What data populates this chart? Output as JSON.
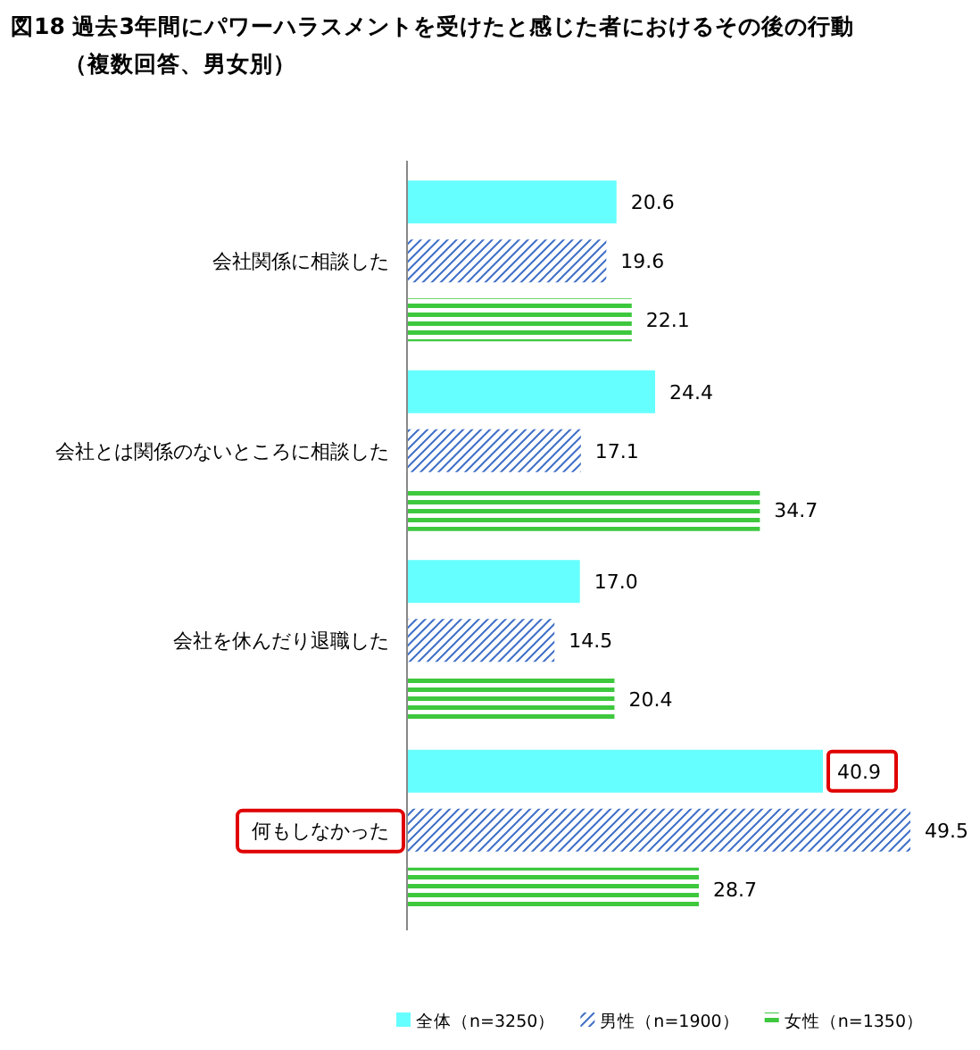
{
  "chart_data": {
    "type": "bar",
    "orientation": "horizontal",
    "title": "図18  過去3年間にパワーハラスメントを受けたと感じた者におけるその後の行動",
    "subtitle": "（複数回答、男女別）",
    "categories": [
      "会社関係に相談した",
      "会社とは関係のないところに相談した",
      "会社を休んだり退職した",
      "何もしなかった"
    ],
    "series": [
      {
        "name": "全体（n=3250）",
        "color": "#66ffff",
        "values": [
          20.6,
          24.4,
          17.0,
          40.9
        ],
        "value_labels": [
          "20.6",
          "24.4",
          "17.0",
          "40.9"
        ]
      },
      {
        "name": "男性（n=1900）",
        "color": "#3f6fc8",
        "values": [
          19.6,
          17.1,
          14.5,
          49.5
        ],
        "value_labels": [
          "19.6",
          "17.1",
          "14.5",
          "49.5"
        ]
      },
      {
        "name": "女性（n=1350）",
        "color": "#3ec83e",
        "values": [
          22.1,
          34.7,
          20.4,
          28.7
        ],
        "value_labels": [
          "22.1",
          "34.7",
          "20.4",
          "28.7"
        ]
      }
    ],
    "legend": "bottom"
  }
}
